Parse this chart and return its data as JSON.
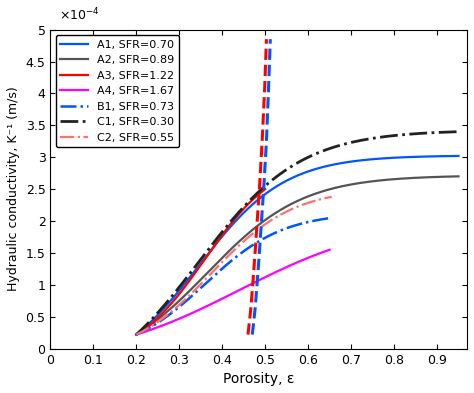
{
  "title": "",
  "xlabel": "Porosity, ε",
  "ylabel": "Hydraulic conductivity, K⁻¹ (m/s)",
  "xlim": [
    0,
    0.97
  ],
  "ylim": [
    0,
    0.0005
  ],
  "curves": [
    {
      "label": "A1, SFR=0.70",
      "color": "#0055FF",
      "linestyle": "solid",
      "linewidth": 1.6,
      "eps_start": 0.2,
      "eps_end": 0.95,
      "K_sat": 0.000302,
      "steepness": 10.0,
      "inflection": 0.345,
      "power": 1.8
    },
    {
      "label": "A2, SFR=0.89",
      "color": "#555555",
      "linestyle": "solid",
      "linewidth": 1.6,
      "eps_start": 0.2,
      "eps_end": 0.95,
      "K_sat": 0.00027,
      "steepness": 9.0,
      "inflection": 0.365,
      "power": 1.8
    },
    {
      "label": "A3, SFR=1.22",
      "color": "#FF0000",
      "linestyle": "solid",
      "linewidth": 1.6,
      "eps_start": 0.2,
      "eps_end": 0.5,
      "K_sat": 0.00025,
      "steepness": 12.0,
      "inflection": 0.36,
      "power": 1.8
    },
    {
      "label": "A4, SFR=1.67",
      "color": "#FF00FF",
      "linestyle": "solid",
      "linewidth": 1.6,
      "eps_start": 0.2,
      "eps_end": 0.65,
      "K_sat": 0.000155,
      "steepness": 6.0,
      "inflection": 0.44,
      "power": 1.8
    },
    {
      "label": "B1, SFR=0.73",
      "color": "#0055FF",
      "linestyle": "dashdot",
      "linewidth": 1.8,
      "eps_start": 0.2,
      "eps_end": 0.655,
      "K_sat": 0.000205,
      "steepness": 11.0,
      "inflection": 0.36,
      "power": 1.8
    },
    {
      "label": "C1, SFR=0.30",
      "color": "#222222",
      "linestyle": "dashdot",
      "linewidth": 2.0,
      "eps_start": 0.2,
      "eps_end": 0.95,
      "K_sat": 0.00034,
      "steepness": 8.5,
      "inflection": 0.345,
      "power": 1.8
    },
    {
      "label": "C2, SFR=0.55",
      "color": "#FF7070",
      "linestyle": "dashdot",
      "linewidth": 1.6,
      "eps_start": 0.2,
      "eps_end": 0.655,
      "K_sat": 0.000238,
      "steepness": 10.5,
      "inflection": 0.375,
      "power": 1.8
    }
  ],
  "steep_red_eps": [
    0.46,
    0.463,
    0.467,
    0.471,
    0.476,
    0.481,
    0.487,
    0.493,
    0.499,
    0.503
  ],
  "steep_red_K": [
    0.22,
    0.4,
    0.65,
    1.0,
    1.45,
    1.95,
    2.55,
    3.25,
    4.1,
    4.85
  ],
  "steep_blue_eps": [
    0.47,
    0.473,
    0.477,
    0.481,
    0.486,
    0.491,
    0.497,
    0.503,
    0.508,
    0.512
  ],
  "steep_blue_K": [
    0.22,
    0.4,
    0.65,
    1.0,
    1.45,
    1.95,
    2.55,
    3.25,
    4.1,
    4.85
  ],
  "legend_loc": "upper left",
  "fontsize": 9,
  "tick_fontsize": 9
}
